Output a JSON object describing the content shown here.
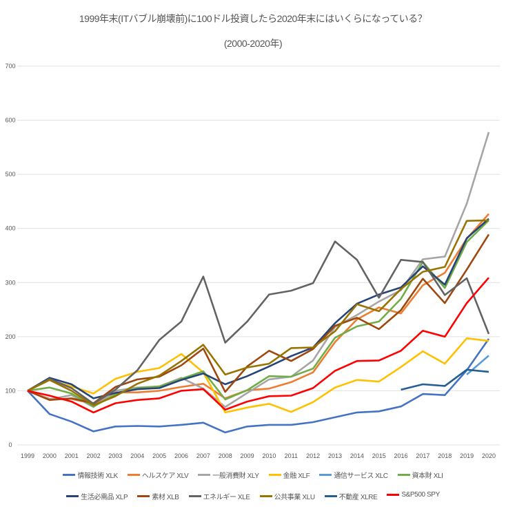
{
  "chart_data": {
    "type": "line",
    "title": "1999年末(ITバブル崩壊前)に100ドル投資したら2020年末にはいくらになっている？",
    "subtitle": "(2000-2020年)",
    "xlabel": "",
    "ylabel": "",
    "ylim": [
      0,
      700
    ],
    "yticks": [
      "0",
      "100",
      "200",
      "300",
      "400",
      "500",
      "600",
      "700"
    ],
    "grid": true,
    "legend_position": "bottom",
    "x": [
      "1999",
      "2000",
      "2001",
      "2002",
      "2003",
      "2004",
      "2005",
      "2006",
      "2007",
      "2008",
      "2009",
      "2010",
      "2011",
      "2012",
      "2013",
      "2014",
      "2015",
      "2016",
      "2017",
      "2018",
      "2019",
      "2020"
    ],
    "series": [
      {
        "name": "情報技術 XLK",
        "color": "#4472c4",
        "values": [
          100,
          57,
          43,
          25,
          34,
          35,
          34,
          37,
          41,
          23,
          34,
          37,
          37,
          42,
          51,
          60,
          62,
          71,
          94,
          92,
          138,
          196
        ]
      },
      {
        "name": "ヘルスケア XLV",
        "color": "#ed7d31",
        "values": [
          100,
          85,
          85,
          76,
          97,
          97,
          100,
          107,
          113,
          86,
          101,
          104,
          116,
          134,
          190,
          232,
          254,
          243,
          295,
          318,
          381,
          427
        ]
      },
      {
        "name": "一般消費財 XLY",
        "color": "#a5a5a5",
        "values": [
          100,
          84,
          92,
          70,
          100,
          106,
          108,
          124,
          104,
          70,
          96,
          121,
          126,
          156,
          218,
          240,
          265,
          286,
          343,
          348,
          446,
          578
        ]
      },
      {
        "name": "金融 XLF",
        "color": "#ffc000",
        "values": [
          100,
          120,
          108,
          95,
          122,
          135,
          142,
          168,
          134,
          60,
          69,
          76,
          61,
          79,
          106,
          120,
          117,
          144,
          173,
          150,
          197,
          192
        ]
      },
      {
        "name": "通信サービス XLC",
        "color": "#5b9bd5",
        "values": [
          null,
          null,
          null,
          null,
          null,
          null,
          null,
          null,
          null,
          null,
          null,
          null,
          null,
          null,
          null,
          null,
          null,
          null,
          null,
          null,
          130,
          165
        ]
      },
      {
        "name": "資本財 XLI",
        "color": "#70ad47",
        "values": [
          100,
          106,
          95,
          71,
          93,
          105,
          108,
          122,
          136,
          84,
          101,
          127,
          126,
          141,
          198,
          219,
          228,
          270,
          338,
          290,
          375,
          415
        ]
      },
      {
        "name": "生活必需品 XLP",
        "color": "#264478",
        "values": [
          100,
          124,
          112,
          86,
          96,
          103,
          105,
          120,
          132,
          112,
          127,
          145,
          164,
          180,
          225,
          261,
          278,
          291,
          330,
          296,
          382,
          418
        ]
      },
      {
        "name": "素材 XLB",
        "color": "#9e480e",
        "values": [
          100,
          83,
          86,
          77,
          107,
          121,
          126,
          147,
          178,
          98,
          145,
          174,
          155,
          177,
          220,
          235,
          214,
          249,
          307,
          262,
          324,
          389
        ]
      },
      {
        "name": "エネルギー XLE",
        "color": "#636363",
        "values": [
          100,
          122,
          105,
          76,
          102,
          138,
          194,
          228,
          311,
          189,
          228,
          278,
          285,
          299,
          376,
          342,
          272,
          342,
          338,
          277,
          308,
          205
        ]
      },
      {
        "name": "公共事業 XLU",
        "color": "#997300",
        "values": [
          100,
          120,
          100,
          73,
          90,
          113,
          128,
          155,
          185,
          130,
          143,
          150,
          179,
          180,
          210,
          260,
          247,
          288,
          320,
          329,
          414,
          415
        ]
      },
      {
        "name": "不動産 XLRE",
        "color": "#255e91",
        "values": [
          null,
          null,
          null,
          null,
          null,
          null,
          null,
          null,
          null,
          null,
          null,
          null,
          null,
          null,
          null,
          null,
          null,
          102,
          112,
          109,
          139,
          135
        ]
      },
      {
        "name": "S&P500 SPY",
        "color": "#ff0000",
        "values": [
          100,
          91,
          80,
          60,
          77,
          83,
          86,
          100,
          103,
          65,
          80,
          90,
          91,
          105,
          137,
          155,
          156,
          174,
          211,
          200,
          262,
          309
        ]
      }
    ]
  }
}
